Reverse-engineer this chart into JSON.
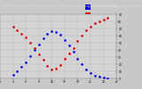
{
  "title": "Solar PV/Inverter Performance  Sun Altitude Angle & Sun Incidence Angle on PV Panels",
  "blue_label": "Sun Altitude Angle",
  "red_label": "Sun Incidence Angle",
  "blue_color": "#0000dd",
  "red_color": "#dd0000",
  "background_color": "#c8c8c8",
  "plot_bg_color": "#d4d4d4",
  "grid_color": "#b0b0b0",
  "title_bg_color": "#303030",
  "title_text_color": "#dddddd",
  "ylim": [
    0,
    90
  ],
  "xlim": [
    0,
    27
  ],
  "title_fontsize": 3.0,
  "tick_fontsize": 2.2,
  "legend_fontsize": 2.2,
  "blue_x": [
    3,
    4,
    5,
    6,
    7,
    8,
    9,
    10,
    11,
    12,
    13,
    14,
    15,
    16,
    17,
    18,
    19,
    20,
    21,
    22,
    23,
    24,
    25
  ],
  "blue_y": [
    5,
    10,
    16,
    23,
    31,
    40,
    48,
    56,
    62,
    66,
    65,
    61,
    54,
    46,
    37,
    28,
    20,
    13,
    8,
    4,
    2,
    1,
    0
  ],
  "red_x": [
    3,
    4,
    5,
    6,
    7,
    8,
    9,
    10,
    11,
    12,
    13,
    14,
    15,
    16,
    17,
    18,
    19,
    20,
    21,
    22,
    23,
    24,
    25
  ],
  "red_y": [
    72,
    68,
    63,
    57,
    50,
    42,
    34,
    26,
    18,
    13,
    14,
    19,
    27,
    35,
    43,
    52,
    60,
    67,
    73,
    77,
    80,
    83,
    85
  ],
  "y_ticks": [
    0,
    10,
    20,
    30,
    40,
    50,
    60,
    70,
    80,
    90
  ],
  "x_ticks": [
    0,
    3,
    6,
    9,
    12,
    15,
    18,
    21,
    24,
    27
  ]
}
